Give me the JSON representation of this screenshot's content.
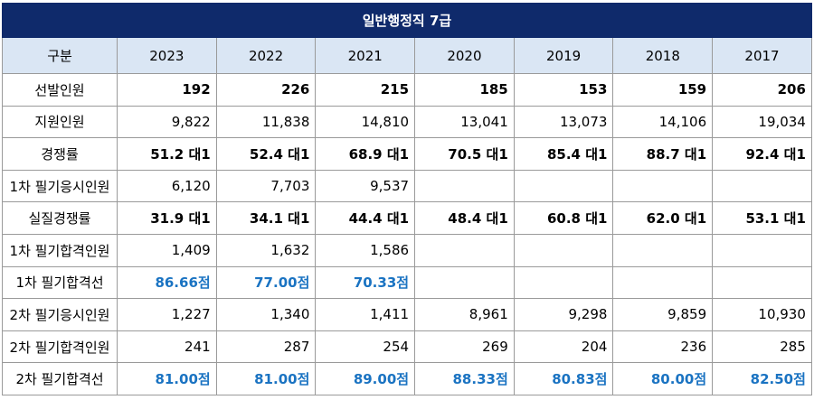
{
  "title": "일반행정직 7급",
  "header": [
    "구분",
    "2023",
    "2022",
    "2021",
    "2020",
    "2019",
    "2018",
    "2017"
  ],
  "rows": [
    {
      "label": "선발인원",
      "style": "bold",
      "values": [
        "192",
        "226",
        "215",
        "185",
        "153",
        "159",
        "206"
      ]
    },
    {
      "label": "지원인원",
      "style": "normal",
      "values": [
        "9,822",
        "11,838",
        "14,810",
        "13,041",
        "13,073",
        "14,106",
        "19,034"
      ]
    },
    {
      "label": "경쟁률",
      "style": "bold",
      "values": [
        "51.2 대1",
        "52.4 대1",
        "68.9 대1",
        "70.5 대1",
        "85.4 대1",
        "88.7 대1",
        "92.4 대1"
      ]
    },
    {
      "label": "1차 필기응시인원",
      "style": "normal",
      "values": [
        "6,120",
        "7,703",
        "9,537",
        "",
        "",
        "",
        ""
      ]
    },
    {
      "label": "실질경쟁률",
      "style": "bold",
      "values": [
        "31.9 대1",
        "34.1 대1",
        "44.4 대1",
        "48.4 대1",
        "60.8 대1",
        "62.0 대1",
        "53.1 대1"
      ]
    },
    {
      "label": "1차 필기합격인원",
      "style": "normal",
      "values": [
        "1,409",
        "1,632",
        "1,586",
        "",
        "",
        "",
        ""
      ]
    },
    {
      "label": "1차 필기합격선",
      "style": "score",
      "values": [
        "86.66점",
        "77.00점",
        "70.33점",
        "",
        "",
        "",
        ""
      ]
    },
    {
      "label": "2차 필기응시인원",
      "style": "normal",
      "values": [
        "1,227",
        "1,340",
        "1,411",
        "8,961",
        "9,298",
        "9,859",
        "10,930"
      ]
    },
    {
      "label": "2차 필기합격인원",
      "style": "normal",
      "values": [
        "241",
        "287",
        "254",
        "269",
        "204",
        "236",
        "285"
      ]
    },
    {
      "label": "2차 필기합격선",
      "style": "score",
      "values": [
        "81.00점",
        "81.00점",
        "89.00점",
        "88.33점",
        "80.83점",
        "80.00점",
        "82.50점"
      ]
    }
  ]
}
